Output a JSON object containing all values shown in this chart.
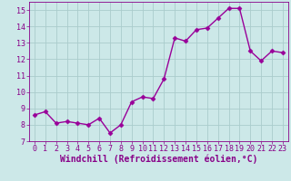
{
  "x": [
    0,
    1,
    2,
    3,
    4,
    5,
    6,
    7,
    8,
    9,
    10,
    11,
    12,
    13,
    14,
    15,
    16,
    17,
    18,
    19,
    20,
    21,
    22,
    23
  ],
  "y": [
    8.6,
    8.8,
    8.1,
    8.2,
    8.1,
    8.0,
    8.4,
    7.5,
    8.0,
    9.4,
    9.7,
    9.6,
    10.8,
    13.3,
    13.1,
    13.8,
    13.9,
    14.5,
    15.1,
    15.1,
    12.5,
    11.9,
    12.5,
    12.4
  ],
  "line_color": "#990099",
  "marker": "D",
  "marker_size": 2.5,
  "bg_color": "#cce8e8",
  "grid_color": "#aacccc",
  "xlabel": "Windchill (Refroidissement éolien,°C)",
  "ylim": [
    7,
    15.5
  ],
  "xlim": [
    -0.5,
    23.5
  ],
  "yticks": [
    7,
    8,
    9,
    10,
    11,
    12,
    13,
    14,
    15
  ],
  "xticks": [
    0,
    1,
    2,
    3,
    4,
    5,
    6,
    7,
    8,
    9,
    10,
    11,
    12,
    13,
    14,
    15,
    16,
    17,
    18,
    19,
    20,
    21,
    22,
    23
  ],
  "tick_fontsize": 6,
  "label_fontsize": 7,
  "line_width": 1.0,
  "text_color": "#880088"
}
